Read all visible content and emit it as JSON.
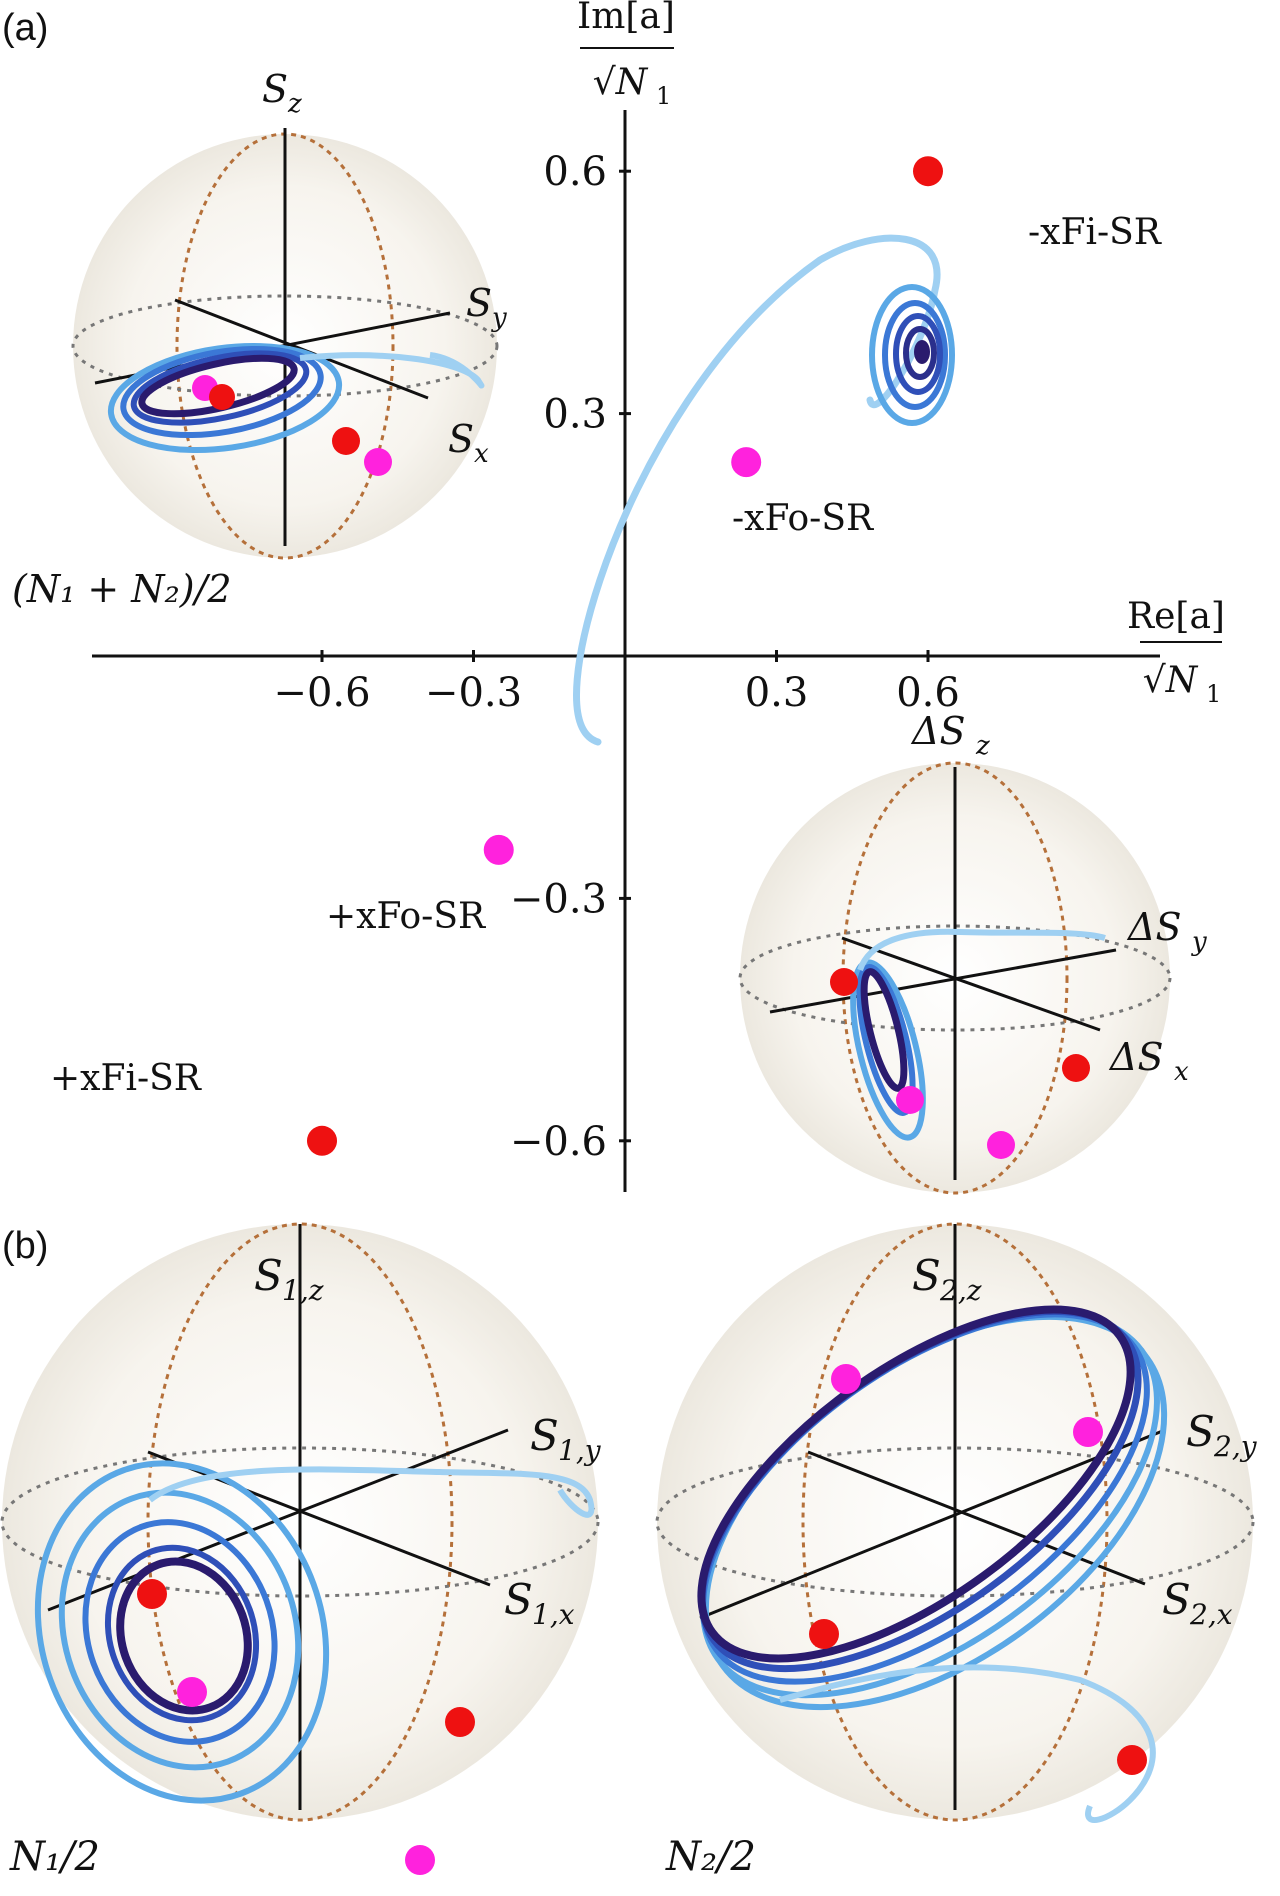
{
  "panel_labels": {
    "a": "(a)",
    "b": "(b)"
  },
  "phase_plot": {
    "x_axis_label": "Re[a]",
    "x_axis_denominator": "√N",
    "x_axis_denominator_sub": "1",
    "y_axis_label": "Im[a]",
    "y_axis_denominator": "√N",
    "y_axis_denominator_sub": "1",
    "x_ticks": [
      "−0.6",
      "−0.3",
      "0.3",
      "0.6"
    ],
    "y_ticks": [
      "0.6",
      "0.3",
      "−0.3",
      "−0.6"
    ],
    "point_labels": {
      "mxFiSR": "-xFi-SR",
      "mxFoSR": "-xFo-SR",
      "pxFoSR": "+xFo-SR",
      "pxFiSR": "+xFi-SR"
    },
    "colors": {
      "fi": "#ee1111",
      "fo": "#ff22dd",
      "traj_light": "#9fd0f2",
      "traj_dark": "#2a1b6e"
    }
  },
  "chart_data": {
    "type": "scatter",
    "xlim": [
      -0.6,
      0.6
    ],
    "ylim": [
      -0.6,
      0.6
    ],
    "points": [
      {
        "name": "-xFi-SR",
        "x": 0.6,
        "y": 0.6
      },
      {
        "name": "-xFo-SR",
        "x": 0.24,
        "y": 0.24
      },
      {
        "name": "+xFo-SR",
        "x": -0.25,
        "y": -0.24
      },
      {
        "name": "+xFi-SR",
        "x": -0.6,
        "y": -0.6
      }
    ]
  },
  "spheres": {
    "sum": {
      "z": "S",
      "z_sub": "z",
      "y": "S",
      "y_sub": "y",
      "x": "S",
      "x_sub": "x",
      "radius_label": "(N₁ + N₂)/2"
    },
    "diff": {
      "z": "ΔS",
      "z_sub": "z",
      "y": "ΔS",
      "y_sub": "y",
      "x": "ΔS",
      "x_sub": "x"
    },
    "s1": {
      "z": "S",
      "z_sub": "1,z",
      "y": "S",
      "y_sub": "1,y",
      "x": "S",
      "x_sub": "1,x",
      "radius_label": "N₁/2"
    },
    "s2": {
      "z": "S",
      "z_sub": "2,z",
      "y": "S",
      "y_sub": "2,y",
      "x": "S",
      "x_sub": "2,x",
      "radius_label": "N₂/2"
    }
  }
}
